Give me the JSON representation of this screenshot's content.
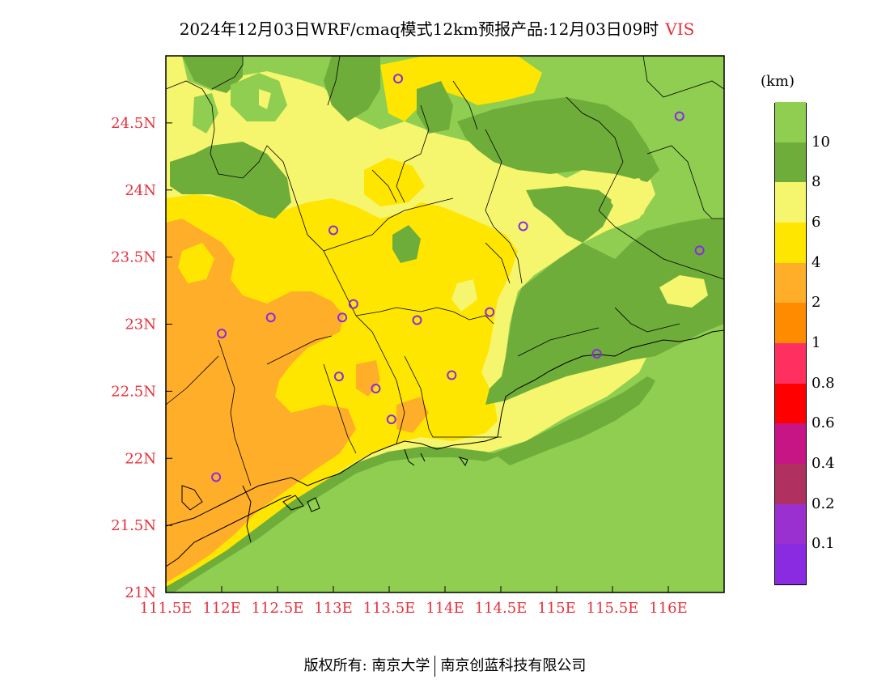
{
  "title": "2024年12月03日WRF/cmaq模式12km预报产品:12月03日09时",
  "variable": "VIS",
  "unit": "(km)",
  "map": {
    "lon_range": [
      111.5,
      116.5
    ],
    "lat_range": [
      21.0,
      25.0
    ],
    "lon_ticks": [
      "111.5E",
      "112E",
      "112.5E",
      "113E",
      "113.5E",
      "114E",
      "114.5E",
      "115E",
      "115.5E",
      "116E"
    ],
    "lat_ticks": [
      "21N",
      "21.5N",
      "22N",
      "22.5N",
      "23N",
      "23.5N",
      "24N",
      "24.5N"
    ],
    "stations": [
      {
        "lon": 113.58,
        "lat": 24.83
      },
      {
        "lon": 116.1,
        "lat": 24.55
      },
      {
        "lon": 113.0,
        "lat": 23.7
      },
      {
        "lon": 114.7,
        "lat": 23.73
      },
      {
        "lon": 116.28,
        "lat": 23.55
      },
      {
        "lon": 113.18,
        "lat": 23.15
      },
      {
        "lon": 112.44,
        "lat": 23.05
      },
      {
        "lon": 113.08,
        "lat": 23.05
      },
      {
        "lon": 113.75,
        "lat": 23.03
      },
      {
        "lon": 114.4,
        "lat": 23.09
      },
      {
        "lon": 112.0,
        "lat": 22.93
      },
      {
        "lon": 115.36,
        "lat": 22.78
      },
      {
        "lon": 113.05,
        "lat": 22.61
      },
      {
        "lon": 113.38,
        "lat": 22.52
      },
      {
        "lon": 114.06,
        "lat": 22.62
      },
      {
        "lon": 113.52,
        "lat": 22.29
      },
      {
        "lon": 111.95,
        "lat": 21.86
      }
    ]
  },
  "colorbar": {
    "colors": [
      "#8a2be2",
      "#9b30d0",
      "#b03060",
      "#c71585",
      "#ff0000",
      "#ff3060",
      "#ff8c00",
      "#ffae2a",
      "#ffe600",
      "#f5f56e",
      "#6fad3a",
      "#8fce50"
    ],
    "labels": [
      "0.1",
      "0.2",
      "0.4",
      "0.6",
      "0.8",
      "1",
      "2",
      "4",
      "6",
      "8",
      "10"
    ]
  },
  "footer": {
    "left": "版权所有: 南京大学",
    "right": "南京创蓝科技有限公司"
  },
  "colors": {
    "vis_2_4": "#ffae2a",
    "vis_4_6": "#ffe600",
    "vis_6_8": "#f5f56e",
    "vis_8_10": "#6fad3a",
    "vis_10_plus": "#8fce50",
    "tick_label": "#e8303a",
    "station": "#8a2be2"
  }
}
